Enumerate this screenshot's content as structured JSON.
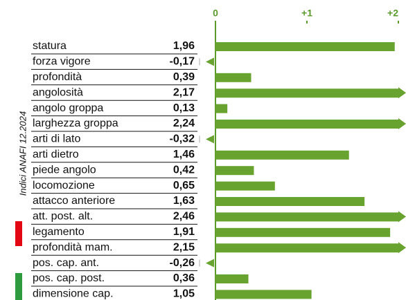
{
  "chart_data": {
    "type": "bar",
    "orientation": "horizontal",
    "color": "#68a22f",
    "side_label": "Indici ANAFI 12.2024",
    "categories": [
      "statura",
      "forza vigore",
      "profondità",
      "angolosità",
      "angolo groppa",
      "larghezza groppa",
      "arti di lato",
      "arti dietro",
      "piede angolo",
      "locomozione",
      "attacco anteriore",
      "att. post. alt.",
      "legamento",
      "profondità mam.",
      "pos. cap. ant.",
      "pos. cap. post.",
      "dimensione cap."
    ],
    "values": [
      1.96,
      -0.17,
      0.39,
      2.17,
      0.13,
      2.24,
      -0.32,
      1.46,
      0.42,
      0.65,
      1.63,
      2.46,
      1.91,
      2.15,
      -0.26,
      0.36,
      1.05
    ],
    "value_labels": [
      "1,96",
      "-0,17",
      "0,39",
      "2,17",
      "0,13",
      "2,24",
      "-0,32",
      "1,46",
      "0,42",
      "0,65",
      "1,63",
      "2,46",
      "1,91",
      "2,15",
      "-0,26",
      "0,36",
      "1,05"
    ],
    "xlim": [
      0,
      2
    ],
    "xticks": [
      0,
      {
        "value": 1,
        "label": "+1"
      },
      {
        "value": 2,
        "label": "+2"
      }
    ]
  }
}
